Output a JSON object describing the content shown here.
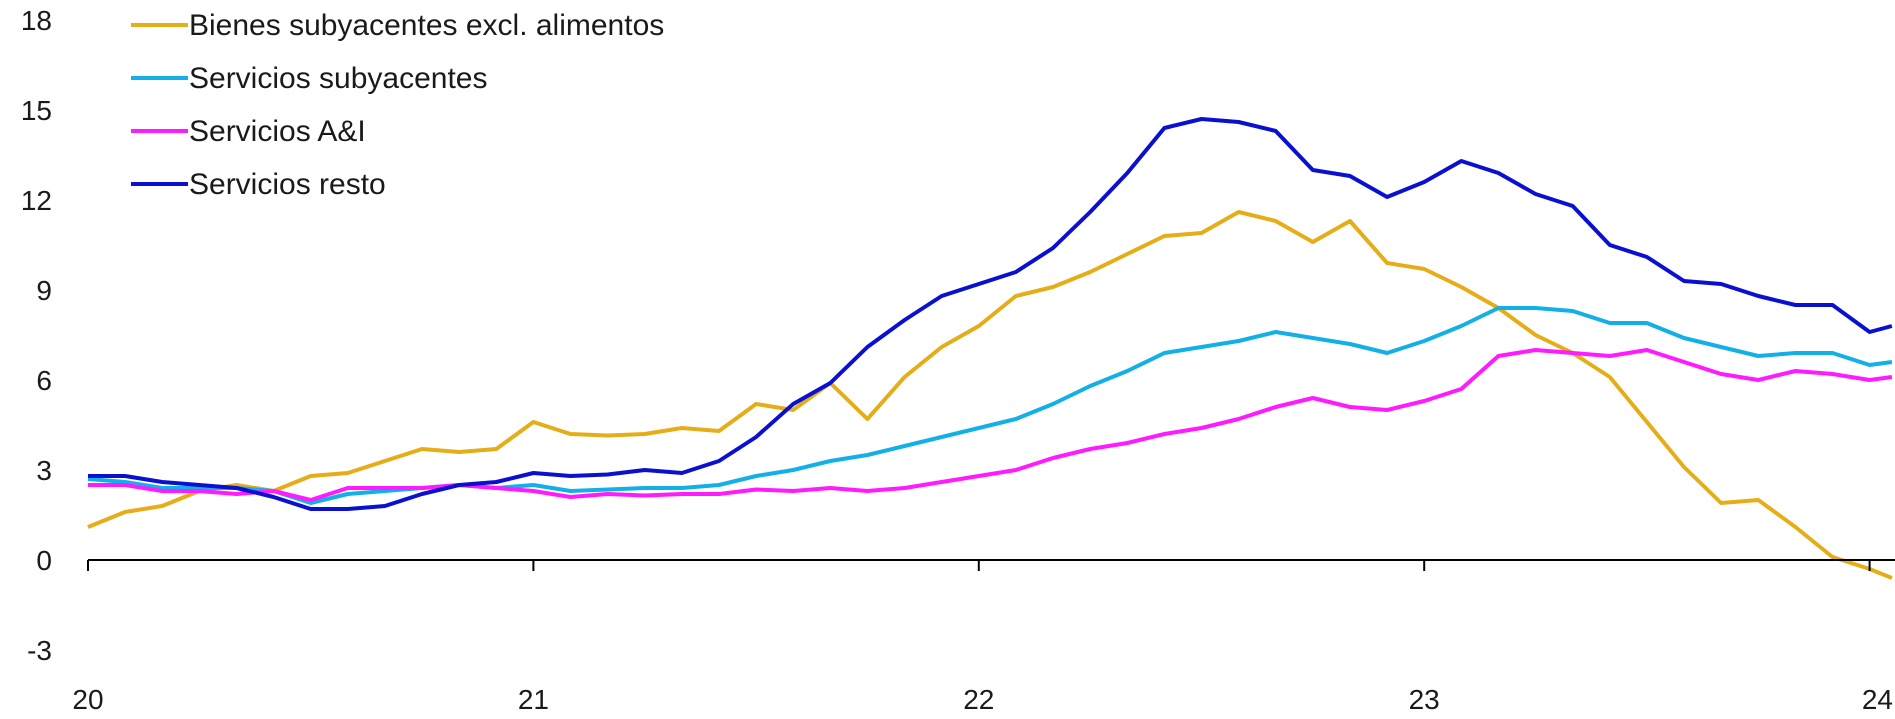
{
  "chart_data": {
    "type": "line",
    "title": "",
    "xlabel": "",
    "ylabel": "",
    "ylim": [
      -3,
      18
    ],
    "xlim": [
      2020.0,
      2024.05
    ],
    "y_ticks": [
      18,
      15,
      12,
      9,
      6,
      3,
      0,
      -3
    ],
    "y_tick_labels": [
      "18",
      "15",
      "12",
      "9",
      "6",
      "3",
      "0",
      "-3"
    ],
    "x_ticks": [
      2020,
      2021,
      2022,
      2023,
      2024
    ],
    "x_tick_labels": [
      "20",
      "21",
      "22",
      "23",
      "24"
    ],
    "grid": false,
    "legend_position": "top-left",
    "x": [
      2020.0,
      2020.0833,
      2020.1667,
      2020.25,
      2020.3333,
      2020.4167,
      2020.5,
      2020.5833,
      2020.6667,
      2020.75,
      2020.8333,
      2020.9167,
      2021.0,
      2021.0833,
      2021.1667,
      2021.25,
      2021.3333,
      2021.4167,
      2021.5,
      2021.5833,
      2021.6667,
      2021.75,
      2021.8333,
      2021.9167,
      2022.0,
      2022.0833,
      2022.1667,
      2022.25,
      2022.3333,
      2022.4167,
      2022.5,
      2022.5833,
      2022.6667,
      2022.75,
      2022.8333,
      2022.9167,
      2023.0,
      2023.0833,
      2023.1667,
      2023.25,
      2023.3333,
      2023.4167,
      2023.5,
      2023.5833,
      2023.6667,
      2023.75,
      2023.8333,
      2023.9167,
      2024.0,
      2024.05
    ],
    "series": [
      {
        "name": "Bienes subyacentes excl. alimentos",
        "color": "#E5AD17",
        "values": [
          1.1,
          1.6,
          1.8,
          2.3,
          2.5,
          2.3,
          2.8,
          2.9,
          3.3,
          3.7,
          3.6,
          3.7,
          4.6,
          4.2,
          4.15,
          4.2,
          4.4,
          4.3,
          5.2,
          5.0,
          5.9,
          4.7,
          6.1,
          7.1,
          7.8,
          8.8,
          9.1,
          9.6,
          10.2,
          10.8,
          10.9,
          11.6,
          11.3,
          10.6,
          11.3,
          9.9,
          9.7,
          9.1,
          8.4,
          7.5,
          6.9,
          6.1,
          4.6,
          3.1,
          1.9,
          2.0,
          1.1,
          0.1,
          -0.3,
          -0.6
        ]
      },
      {
        "name": "Servicios subyacentes",
        "color": "#13B0E8",
        "values": [
          2.7,
          2.6,
          2.4,
          2.4,
          2.4,
          2.3,
          1.9,
          2.2,
          2.3,
          2.4,
          2.5,
          2.4,
          2.5,
          2.3,
          2.35,
          2.4,
          2.4,
          2.5,
          2.8,
          3.0,
          3.3,
          3.5,
          3.8,
          4.1,
          4.4,
          4.7,
          5.2,
          5.8,
          6.3,
          6.9,
          7.1,
          7.3,
          7.6,
          7.4,
          7.2,
          6.9,
          7.3,
          7.8,
          8.4,
          8.4,
          8.3,
          7.9,
          7.9,
          7.4,
          7.1,
          6.8,
          6.9,
          6.9,
          6.5,
          6.6
        ]
      },
      {
        "name": "Servicios A&I",
        "color": "#FF1AFF",
        "values": [
          2.5,
          2.5,
          2.3,
          2.3,
          2.2,
          2.3,
          2.0,
          2.4,
          2.4,
          2.4,
          2.5,
          2.4,
          2.3,
          2.1,
          2.2,
          2.15,
          2.2,
          2.2,
          2.35,
          2.3,
          2.4,
          2.3,
          2.4,
          2.6,
          2.8,
          3.0,
          3.4,
          3.7,
          3.9,
          4.2,
          4.4,
          4.7,
          5.1,
          5.4,
          5.1,
          5.0,
          5.3,
          5.7,
          6.8,
          7.0,
          6.9,
          6.8,
          7.0,
          6.6,
          6.2,
          6.0,
          6.3,
          6.2,
          6.0,
          6.1
        ]
      },
      {
        "name": "Servicios resto",
        "color": "#0A10D0",
        "values": [
          2.8,
          2.8,
          2.6,
          2.5,
          2.4,
          2.1,
          1.7,
          1.7,
          1.8,
          2.2,
          2.5,
          2.6,
          2.9,
          2.8,
          2.85,
          3.0,
          2.9,
          3.3,
          4.1,
          5.2,
          5.9,
          7.1,
          8.0,
          8.8,
          9.2,
          9.6,
          10.4,
          11.6,
          12.9,
          14.4,
          14.7,
          14.6,
          14.3,
          13.0,
          12.8,
          12.1,
          12.6,
          13.3,
          12.9,
          12.2,
          11.8,
          10.5,
          10.1,
          9.3,
          9.2,
          8.8,
          8.5,
          8.5,
          7.6,
          7.8
        ]
      }
    ]
  }
}
